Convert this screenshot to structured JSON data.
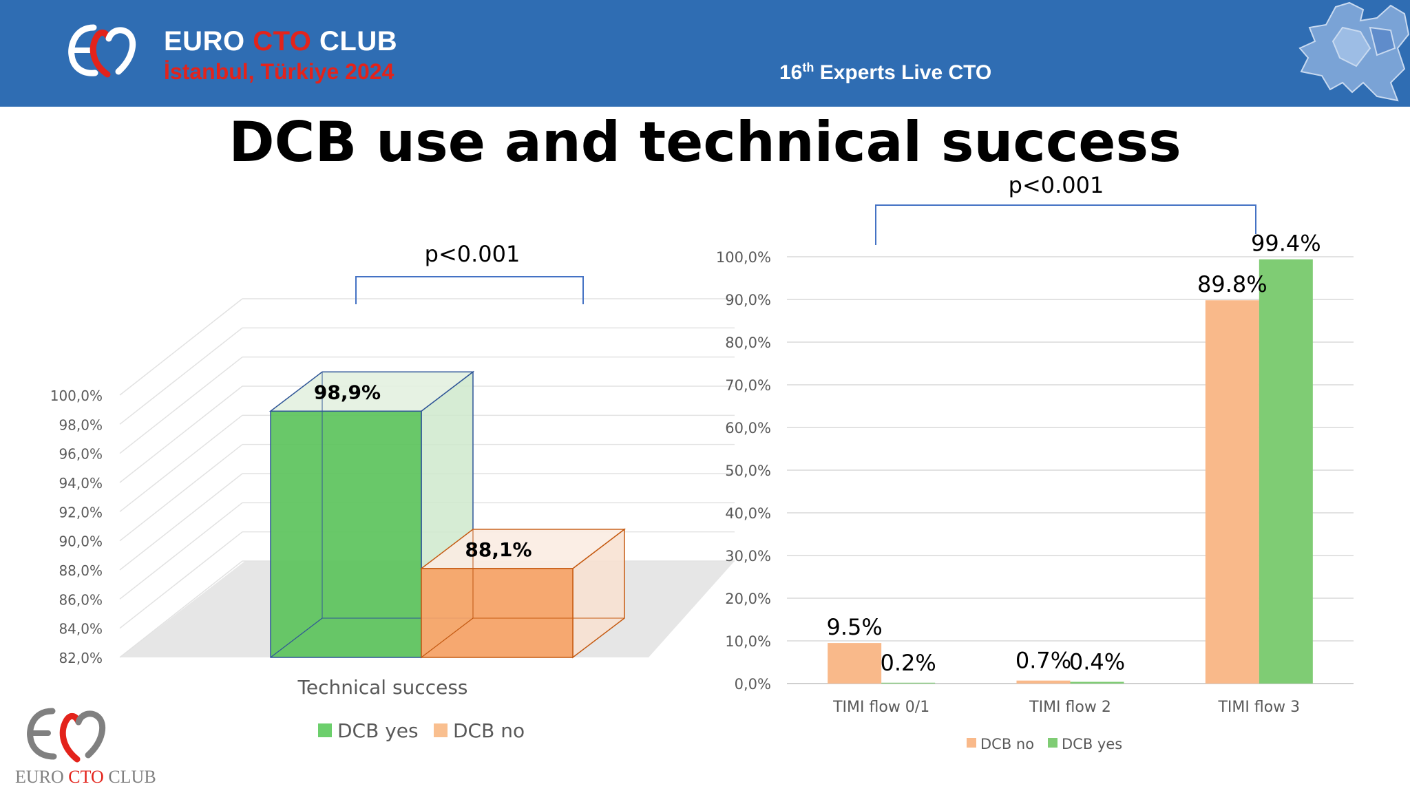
{
  "header": {
    "club_name_a": "EURO ",
    "club_name_accent": "CTO",
    "club_name_b": " CLUB",
    "location": "İstanbul, Türkiye 2024",
    "event_prefix": "16",
    "event_sup": "th",
    "event_suffix": " Experts Live CTO"
  },
  "title": "DCB use and technical success",
  "footer": {
    "logo_text_a": "EURO ",
    "logo_text_accent": "CTO",
    "logo_text_b": " CLUB"
  },
  "colors": {
    "banner": "#2f6db3",
    "green": "#5cc35c",
    "orange": "#f7a366",
    "accent_red": "#e3231b"
  },
  "chart_data": [
    {
      "type": "bar",
      "subtype": "3d-column",
      "categories": [
        "Technical success"
      ],
      "series": [
        {
          "name": "DCB yes",
          "values": [
            98.9
          ],
          "label": "98,9%",
          "color": "#5cc35c"
        },
        {
          "name": "DCB no",
          "values": [
            88.1
          ],
          "label": "88,1%",
          "color": "#f7a366"
        }
      ],
      "ylim": [
        82,
        100
      ],
      "yticks": [
        "100,0%",
        "98,0%",
        "96,0%",
        "94,0%",
        "92,0%",
        "90,0%",
        "88,0%",
        "86,0%",
        "84,0%",
        "82,0%"
      ],
      "ytick_values": [
        100,
        98,
        96,
        94,
        92,
        90,
        88,
        86,
        84,
        82
      ],
      "annotation": "p<0.001",
      "legend": "bottom",
      "grid": true
    },
    {
      "type": "bar",
      "categories": [
        "TIMI flow 0/1",
        "TIMI flow 2",
        "TIMI flow 3"
      ],
      "series": [
        {
          "name": "DCB no",
          "values": [
            9.5,
            0.7,
            89.8
          ],
          "labels": [
            "9.5%",
            "0.7%",
            "89.8%"
          ],
          "color": "#f9b98a"
        },
        {
          "name": "DCB yes",
          "values": [
            0.2,
            0.4,
            99.4
          ],
          "labels": [
            "0.2%",
            "0.4%",
            "99.4%"
          ],
          "color": "#7fcc74"
        }
      ],
      "ylim": [
        0,
        100
      ],
      "yticks": [
        "100,0%",
        "90,0%",
        "80,0%",
        "70,0%",
        "60,0%",
        "50,0%",
        "40,0%",
        "30,0%",
        "20,0%",
        "10,0%",
        "0,0%"
      ],
      "ytick_values": [
        100,
        90,
        80,
        70,
        60,
        50,
        40,
        30,
        20,
        10,
        0
      ],
      "annotation": "p<0.001",
      "legend": "bottom",
      "grid": true
    }
  ]
}
